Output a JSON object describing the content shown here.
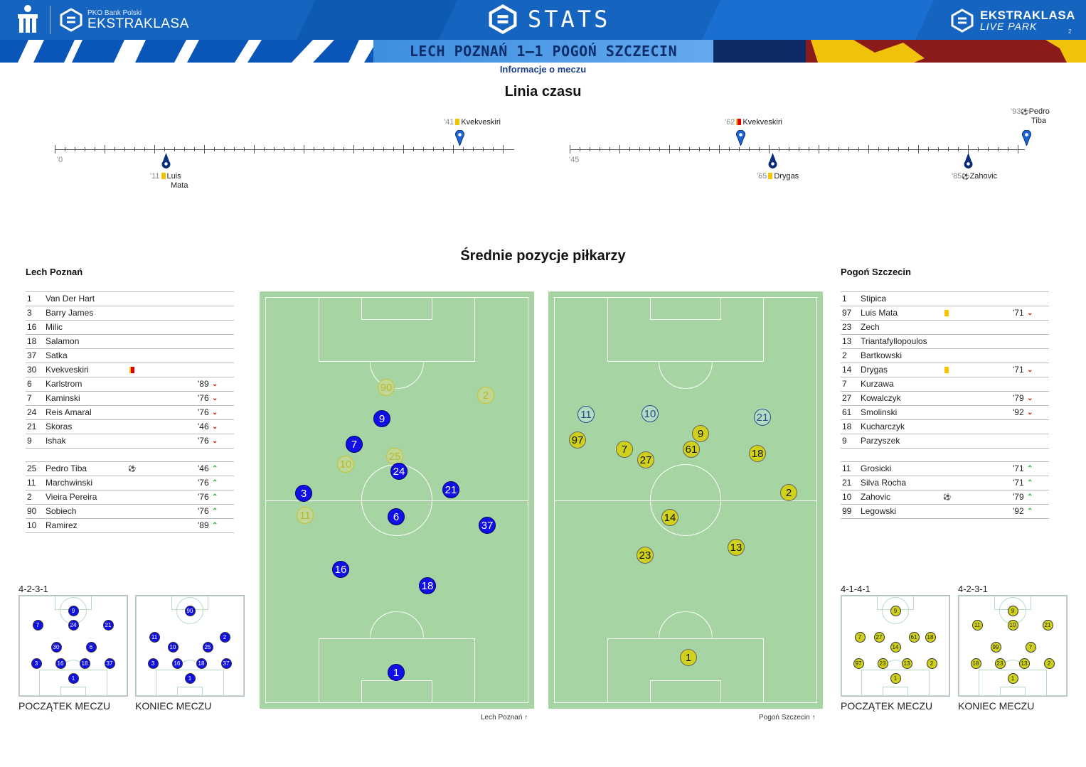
{
  "header": {
    "brand_small": "PKO Bank Polski",
    "brand_big": "EKSTRAKLASA",
    "stats_title": "STATS",
    "right_logo_line1": "EKSTRAKLASA",
    "right_logo_line2": "LIVE PARK",
    "page_number": "2",
    "score_line": "LECH POZNAŃ 1–1 POGOŃ SZCZECIN",
    "subtitle": "Informacje o meczu",
    "colors": {
      "primary_blue": "#1565c0",
      "dark_red": "#8b1b1b",
      "gold": "#f1c20b",
      "navy": "#0b2e6b"
    }
  },
  "timeline": {
    "title": "Linia czasu",
    "half1_start": "'0",
    "half2_start": "'45",
    "events": [
      {
        "minute": "'41",
        "player": "Kvekveskiri",
        "icon": "yellow-card",
        "side": "top",
        "half": 1
      },
      {
        "minute": "'11",
        "player": "Luis",
        "player2": "Mata",
        "icon": "yellow-card",
        "side": "bottom",
        "half": 1
      },
      {
        "minute": "'62",
        "player": "Kvekveskiri",
        "icon": "red-card",
        "side": "top",
        "half": 2
      },
      {
        "minute": "'65",
        "player": "Drygas",
        "icon": "yellow-card",
        "side": "bottom",
        "half": 2
      },
      {
        "minute": "'85",
        "player": "Zahovic",
        "icon": "goal-ball",
        "side": "bottom",
        "half": 2
      },
      {
        "minute": "'93",
        "player": "Pedro",
        "player2": "Tiba",
        "icon": "goal-ball",
        "side": "top",
        "half": 2
      }
    ]
  },
  "positions": {
    "title": "Średnie pozycje piłkarzy",
    "home": {
      "name": "Lech Poznań",
      "starters": [
        {
          "num": "1",
          "name": "Van Der Hart"
        },
        {
          "num": "3",
          "name": "Barry James"
        },
        {
          "num": "16",
          "name": "Milic"
        },
        {
          "num": "18",
          "name": "Salamon"
        },
        {
          "num": "37",
          "name": "Satka"
        },
        {
          "num": "30",
          "name": "Kvekveskiri",
          "icon": "red-card"
        },
        {
          "num": "6",
          "name": "Karlstrom",
          "min": "'89",
          "dir": "down"
        },
        {
          "num": "7",
          "name": "Kaminski",
          "min": "'76",
          "dir": "down"
        },
        {
          "num": "24",
          "name": "Reis Amaral",
          "min": "'76",
          "dir": "down"
        },
        {
          "num": "21",
          "name": "Skoras",
          "min": "'46",
          "dir": "down"
        },
        {
          "num": "9",
          "name": "Ishak",
          "min": "'76",
          "dir": "down"
        }
      ],
      "subs": [
        {
          "num": "25",
          "name": "Pedro Tiba",
          "icon": "goal-ball",
          "min": "'46",
          "dir": "up"
        },
        {
          "num": "11",
          "name": "Marchwinski",
          "min": "'76",
          "dir": "up"
        },
        {
          "num": "2",
          "name": "Vieira Pereira",
          "min": "'76",
          "dir": "up"
        },
        {
          "num": "90",
          "name": "Sobiech",
          "min": "'76",
          "dir": "up"
        },
        {
          "num": "10",
          "name": "Ramirez",
          "min": "'89",
          "dir": "up"
        }
      ],
      "pitch_caption": "Lech Poznań",
      "formation_start": "4-2-3-1",
      "formation_end": "",
      "start_caption": "POCZĄTEK MECZU",
      "end_caption": "KONIEC MECZU"
    },
    "away": {
      "name": "Pogoń Szczecin",
      "starters": [
        {
          "num": "1",
          "name": "Stipica"
        },
        {
          "num": "97",
          "name": "Luis Mata",
          "icon": "yellow-card",
          "min": "'71",
          "dir": "down"
        },
        {
          "num": "23",
          "name": "Zech"
        },
        {
          "num": "13",
          "name": "Triantafyllopoulos"
        },
        {
          "num": "2",
          "name": "Bartkowski"
        },
        {
          "num": "14",
          "name": "Drygas",
          "icon": "yellow-card",
          "min": "'71",
          "dir": "down"
        },
        {
          "num": "7",
          "name": "Kurzawa"
        },
        {
          "num": "27",
          "name": "Kowalczyk",
          "min": "'79",
          "dir": "down"
        },
        {
          "num": "61",
          "name": "Smolinski",
          "min": "'92",
          "dir": "down"
        },
        {
          "num": "18",
          "name": "Kucharczyk"
        },
        {
          "num": "9",
          "name": "Parzyszek"
        }
      ],
      "subs": [
        {
          "num": "11",
          "name": "Grosicki",
          "min": "'71",
          "dir": "up"
        },
        {
          "num": "21",
          "name": "Silva Rocha",
          "min": "'71",
          "dir": "up"
        },
        {
          "num": "10",
          "name": "Zahovic",
          "icon": "goal-ball",
          "min": "'79",
          "dir": "up"
        },
        {
          "num": "99",
          "name": "Legowski",
          "min": "'92",
          "dir": "up"
        }
      ],
      "pitch_caption": "Pogoń Szczecin",
      "formation_start": "4-1-4-1",
      "formation_end": "4-2-3-1",
      "start_caption": "POCZĄTEK MECZU",
      "end_caption": "KONIEC MECZU"
    }
  }
}
